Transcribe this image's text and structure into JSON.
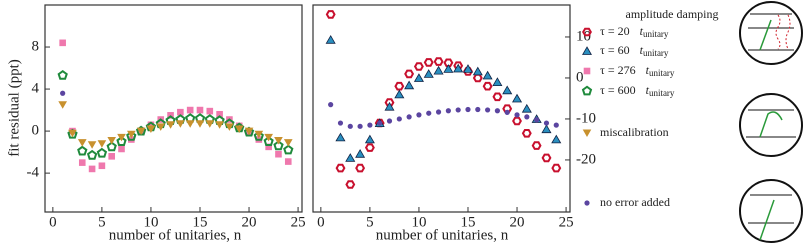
{
  "chart_data": [
    {
      "type": "scatter",
      "ylabel": "fit residual (ppt)",
      "xlabel": "number of unitaries, n",
      "legend_title": "amplitude damping",
      "xlim": [
        -0.8,
        25.4
      ],
      "ylim": [
        -7.7,
        12
      ],
      "xticks": [
        0,
        5,
        10,
        15,
        20,
        25
      ],
      "yticks": [
        -4,
        0,
        4,
        8
      ],
      "series": [
        {
          "name": "τ = 276",
          "unit": "t",
          "unit_sub": "unitary",
          "marker": "square",
          "color": "#ef78ad",
          "x": [
            1,
            2,
            3,
            4,
            5,
            6,
            7,
            8,
            9,
            10,
            11,
            12,
            13,
            14,
            15,
            16,
            17,
            18,
            19,
            20,
            21,
            22,
            23,
            24
          ],
          "values": [
            8.4,
            0,
            -3,
            -3.6,
            -3.3,
            -2.4,
            -1.7,
            -0.8,
            -0.1,
            0.6,
            1.1,
            1.5,
            1.8,
            2,
            2,
            1.9,
            1.6,
            1.1,
            0.5,
            -0.1,
            -0.8,
            -1.5,
            -2.2,
            -2.9
          ]
        },
        {
          "name": "τ = 600",
          "unit": "t",
          "unit_sub": "unitary",
          "marker": "pentagon",
          "color": "#1f8a3c",
          "x": [
            1,
            2,
            3,
            4,
            5,
            6,
            7,
            8,
            9,
            10,
            11,
            12,
            13,
            14,
            15,
            16,
            17,
            18,
            19,
            20,
            21,
            22,
            23,
            24
          ],
          "values": [
            5.3,
            -0.3,
            -1.9,
            -2.3,
            -2.1,
            -1.5,
            -1,
            -0.5,
            0,
            0.4,
            0.7,
            1,
            1.1,
            1.2,
            1.2,
            1.1,
            1,
            0.7,
            0.3,
            -0.1,
            -0.5,
            -1,
            -1.4,
            -1.8
          ]
        },
        {
          "name": "miscalibration",
          "marker": "tri-down",
          "color": "#c8912e",
          "x": [
            1,
            2,
            3,
            4,
            5,
            6,
            7,
            8,
            9,
            10,
            11,
            12,
            13,
            14,
            15,
            16,
            17,
            18,
            19,
            20,
            21,
            22,
            23,
            24
          ],
          "values": [
            2.5,
            -0.2,
            -1.1,
            -1.3,
            -1.2,
            -0.9,
            -0.6,
            -0.3,
            0,
            0.2,
            0.4,
            0.6,
            0.7,
            0.7,
            0.7,
            0.7,
            0.6,
            0.4,
            0.2,
            0,
            -0.3,
            -0.6,
            -0.9,
            -1.1
          ]
        },
        {
          "name": "no error added",
          "marker": "dot",
          "color": "#5b45a0",
          "x": [
            1
          ],
          "values": [
            3.6
          ]
        }
      ]
    },
    {
      "type": "scatter",
      "xlabel": "number of unitaries, n",
      "xlim": [
        -0.8,
        25.4
      ],
      "ylim": [
        -32.7,
        17.8
      ],
      "xticks": [
        0,
        5,
        10,
        15,
        20,
        25
      ],
      "yticks": [
        -20,
        -10,
        0,
        10
      ],
      "series": [
        {
          "name": "τ = 20",
          "unit": "t",
          "unit_sub": "unitary",
          "marker": "hexagon",
          "color": "#c8102e",
          "x": [
            1,
            2,
            3,
            4,
            5,
            6,
            7,
            8,
            9,
            10,
            11,
            12,
            13,
            14,
            15,
            16,
            17,
            18,
            19,
            20,
            21,
            22,
            23,
            24
          ],
          "values": [
            15.5,
            -22,
            -26,
            -22,
            -17,
            -11,
            -6,
            -2,
            1,
            2.8,
            3.8,
            4,
            3.7,
            3,
            1.6,
            0,
            -2,
            -4.6,
            -7.5,
            -10.5,
            -13.5,
            -16.5,
            -19.5,
            -22
          ]
        },
        {
          "name": "τ = 60",
          "unit": "t",
          "unit_sub": "unitary",
          "marker": "tri-up",
          "color": "#2a8fbf",
          "x": [
            1,
            2,
            3,
            4,
            5,
            6,
            7,
            8,
            9,
            10,
            11,
            12,
            13,
            14,
            15,
            16,
            17,
            18,
            19,
            20,
            21,
            22,
            23,
            24
          ],
          "values": [
            9.3,
            -14.5,
            -19.5,
            -18.5,
            -15,
            -11,
            -7,
            -4,
            -1.8,
            0,
            1,
            1.8,
            2.2,
            2.3,
            2.2,
            1.6,
            0.6,
            -1,
            -3,
            -5,
            -7.5,
            -10,
            -12.5,
            -15
          ]
        },
        {
          "name": "no error added",
          "marker": "dot",
          "color": "#5b45a0",
          "x": [
            1,
            2,
            3,
            4,
            5,
            6,
            7,
            8,
            9,
            10,
            11,
            12,
            13,
            14,
            15,
            16,
            17,
            18,
            19,
            20,
            21,
            22,
            23,
            24
          ],
          "values": [
            -6.5,
            -11,
            -11.8,
            -11.8,
            -11.5,
            -11,
            -10.5,
            -10,
            -9.5,
            -9,
            -8.6,
            -8.3,
            -8,
            -7.8,
            -7.7,
            -7.7,
            -7.8,
            -8,
            -8.4,
            -9,
            -9.5,
            -10.2,
            -11,
            -11.5
          ]
        }
      ]
    }
  ]
}
